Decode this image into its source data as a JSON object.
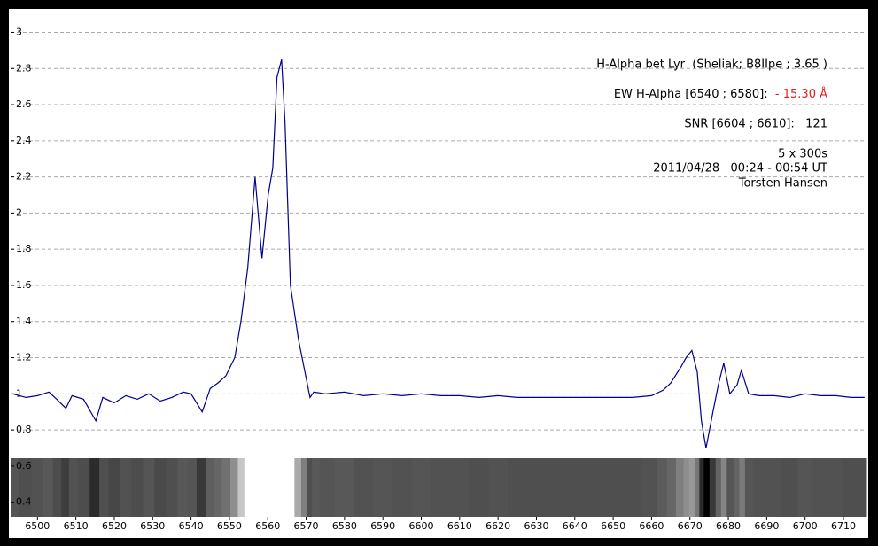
{
  "chart_data": {
    "type": "line",
    "x": [
      6493.5,
      6497,
      6500,
      6503,
      6505,
      6507.4,
      6509,
      6512,
      6515.2,
      6517,
      6520,
      6523,
      6526,
      6529,
      6532,
      6535,
      6538,
      6540,
      6542.9,
      6545,
      6547,
      6549.1,
      6551.4,
      6553,
      6554.8,
      6556.7,
      6558.5,
      6560.1,
      6561.3,
      6562.4,
      6563.6,
      6564.5,
      6565.9,
      6568,
      6569.4,
      6571,
      6572,
      6575,
      6580,
      6585,
      6590,
      6595,
      6600,
      6605,
      6610,
      6615,
      6620,
      6625,
      6630,
      6635,
      6640,
      6645,
      6650,
      6655,
      6660,
      6663,
      6665,
      6667.7,
      6669,
      6670.5,
      6671.9,
      6673,
      6674.2,
      6676,
      6677.4,
      6678.8,
      6680.4,
      6682.3,
      6683.4,
      6685.3,
      6688,
      6692,
      6696,
      6700,
      6704,
      6708,
      6712,
      6715.5
    ],
    "values": [
      1.0,
      0.98,
      0.99,
      1.01,
      0.97,
      0.92,
      0.99,
      0.97,
      0.85,
      0.98,
      0.95,
      0.99,
      0.97,
      1.0,
      0.96,
      0.98,
      1.01,
      1.0,
      0.9,
      1.03,
      1.06,
      1.1,
      1.2,
      1.4,
      1.7,
      2.2,
      1.75,
      2.1,
      2.25,
      2.75,
      2.85,
      2.5,
      1.6,
      1.3,
      1.15,
      0.98,
      1.01,
      1.0,
      1.01,
      0.99,
      1.0,
      0.99,
      1.0,
      0.99,
      0.99,
      0.98,
      0.99,
      0.98,
      0.98,
      0.98,
      0.98,
      0.98,
      0.98,
      0.98,
      0.99,
      1.02,
      1.06,
      1.15,
      1.2,
      1.24,
      1.12,
      0.85,
      0.7,
      0.9,
      1.05,
      1.17,
      1.0,
      1.05,
      1.13,
      1.0,
      0.99,
      0.99,
      0.98,
      1.0,
      0.99,
      0.99,
      0.98,
      0.98
    ],
    "color": "#00008b",
    "xlim": [
      6493,
      6716
    ],
    "ylim": [
      0.32,
      3.12
    ],
    "xticks": [
      6500,
      6510,
      6520,
      6530,
      6540,
      6550,
      6560,
      6570,
      6580,
      6590,
      6600,
      6610,
      6620,
      6630,
      6640,
      6650,
      6660,
      6670,
      6680,
      6690,
      6700,
      6710
    ],
    "yticks": [
      0.4,
      0.6,
      0.8,
      1,
      1.2,
      1.4,
      1.6,
      1.8,
      2,
      2.2,
      2.4,
      2.6,
      2.8,
      3
    ],
    "grid": true,
    "annotations": [
      "H-Alpha bet Lyr  (Sheliak; B8IIpe ; 3.65 )",
      "EW H-Alpha [6540 ; 6580]:  ",
      "- 15.30 Å",
      "SNR [6604 ; 6610]:   121",
      "5 x 300s",
      "2011/04/28   00:24 - 00:54 UT",
      "Torsten Hansen"
    ]
  }
}
